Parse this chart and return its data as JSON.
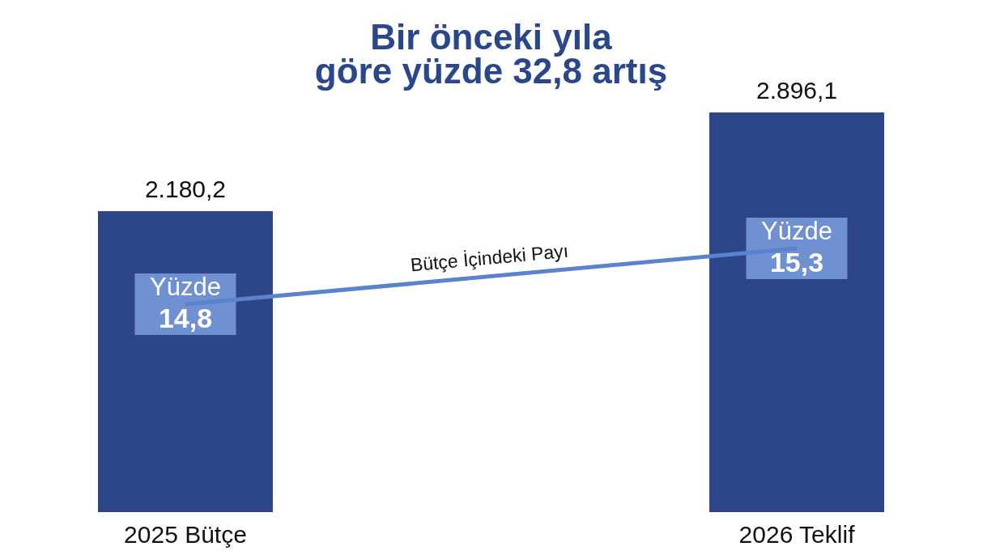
{
  "chart_data": {
    "type": "bar",
    "title": "Bir önceki yıla\ngöre yüzde 32,8 artış",
    "categories": [
      "2025 Bütçe",
      "2026 Teklif"
    ],
    "tick_labels": "x",
    "series": [
      {
        "color": "#2c4687",
        "values": [
          2180.2,
          2896.1
        ],
        "value_labels": [
          "2.180,2",
          "2.896,1"
        ]
      },
      {
        "type": "line",
        "name": "Bütçe İçindeki Payı",
        "axis": "y2",
        "color": "#5b82cc",
        "values": [
          14.8,
          15.3
        ],
        "value_labels": [
          "Yüzde 14,8",
          "Yüzde 15,3"
        ]
      }
    ]
  }
}
